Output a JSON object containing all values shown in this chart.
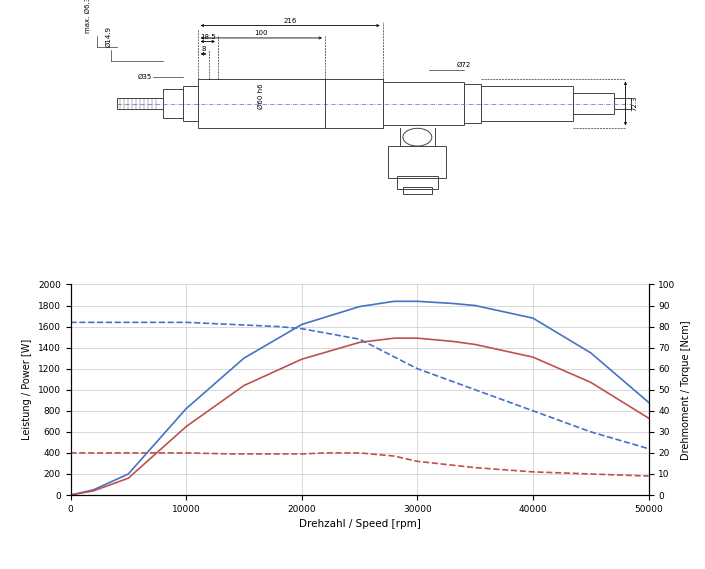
{
  "chart_xlabel": "Drehzahl / Speed [rpm]",
  "chart_ylabel_left": "Leistung / Power [W]",
  "chart_ylabel_right": "Drehmoment / Torque [Ncm]",
  "ylim_left": [
    0,
    2000
  ],
  "ylim_right": [
    0,
    100
  ],
  "xlim": [
    0,
    50000
  ],
  "yticks_left": [
    0,
    200,
    400,
    600,
    800,
    1000,
    1200,
    1400,
    1600,
    1800,
    2000
  ],
  "yticks_right": [
    0,
    10,
    20,
    30,
    40,
    50,
    60,
    70,
    80,
    90,
    100
  ],
  "xticks": [
    0,
    10000,
    20000,
    30000,
    40000,
    50000
  ],
  "color_blue": "#4472C4",
  "color_red": "#C0504D",
  "max_power_x": [
    0,
    2000,
    5000,
    10000,
    15000,
    20000,
    25000,
    28000,
    30000,
    33000,
    35000,
    40000,
    45000,
    50000
  ],
  "max_power_y": [
    0,
    50,
    200,
    820,
    1300,
    1620,
    1790,
    1840,
    1840,
    1820,
    1800,
    1680,
    1350,
    880
  ],
  "s1_power_x": [
    0,
    2000,
    5000,
    10000,
    15000,
    20000,
    25000,
    28000,
    30000,
    33000,
    35000,
    40000,
    45000,
    50000
  ],
  "s1_power_y": [
    0,
    40,
    160,
    650,
    1040,
    1290,
    1450,
    1490,
    1490,
    1460,
    1430,
    1310,
    1070,
    730
  ],
  "max_torque_x": [
    0,
    5000,
    10000,
    14000,
    18000,
    20000,
    25000,
    30000,
    35000,
    40000,
    45000,
    50000
  ],
  "max_torque_y": [
    82,
    82,
    82,
    81,
    80,
    79,
    74,
    60,
    50,
    40,
    30,
    22
  ],
  "s1_torque_x": [
    0,
    5000,
    10000,
    14000,
    18000,
    20000,
    22000,
    25000,
    28000,
    30000,
    35000,
    40000,
    45000,
    50000
  ],
  "s1_torque_y": [
    20,
    20,
    20,
    19.5,
    19.5,
    19.5,
    20,
    20,
    18.5,
    16,
    13,
    11,
    10,
    9
  ],
  "grid_color": "#BBBBBB",
  "background_color": "#FFFFFF",
  "draw_lw": 0.7,
  "draw_gray": "#444444"
}
